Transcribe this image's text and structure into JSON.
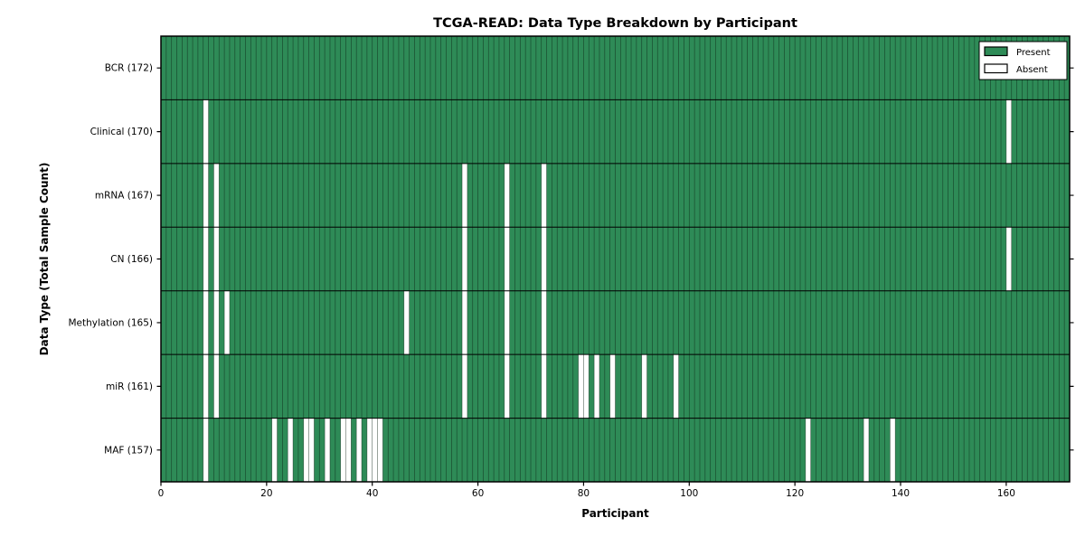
{
  "figure": {
    "background": "#ffffff"
  },
  "chart_data": {
    "type": "heatmap",
    "title": "TCGA-READ: Data Type Breakdown by Participant",
    "xlabel": "Participant",
    "ylabel": "Data Type (Total Sample Count)",
    "n_participants": 172,
    "x_ticks": [
      0,
      20,
      40,
      60,
      80,
      100,
      120,
      140,
      160
    ],
    "rows": [
      {
        "label": "BCR (172)",
        "total": 172,
        "absent": []
      },
      {
        "label": "Clinical (170)",
        "total": 170,
        "absent": [
          8,
          160
        ]
      },
      {
        "label": "mRNA (167)",
        "total": 167,
        "absent": [
          8,
          10,
          57,
          65,
          72
        ]
      },
      {
        "label": "CN (166)",
        "total": 166,
        "absent": [
          8,
          10,
          57,
          65,
          72,
          160
        ]
      },
      {
        "label": "Methylation (165)",
        "total": 165,
        "absent": [
          8,
          10,
          12,
          46,
          57,
          65,
          72
        ]
      },
      {
        "label": "miR (161)",
        "total": 161,
        "absent": [
          8,
          10,
          57,
          65,
          72,
          79,
          80,
          82,
          85,
          91,
          97
        ]
      },
      {
        "label": "MAF (157)",
        "total": 157,
        "absent": [
          8,
          21,
          24,
          27,
          28,
          31,
          34,
          35,
          37,
          39,
          40,
          41,
          122,
          133,
          138
        ]
      }
    ],
    "legend": [
      {
        "label": "Present",
        "color": "#2e8b57"
      },
      {
        "label": "Absent",
        "color": "#ffffff"
      }
    ],
    "legend_position": "top-right",
    "grid": "cell-edges",
    "xlim": [
      0,
      172
    ],
    "colors": {
      "present": "#2e8b57",
      "absent": "#ffffff",
      "cell_edge": "rgba(10,25,15,0.55)",
      "row_divider": "#000000",
      "frame": "#000000",
      "text": "#000000",
      "legend_bg": "#ffffff"
    }
  }
}
